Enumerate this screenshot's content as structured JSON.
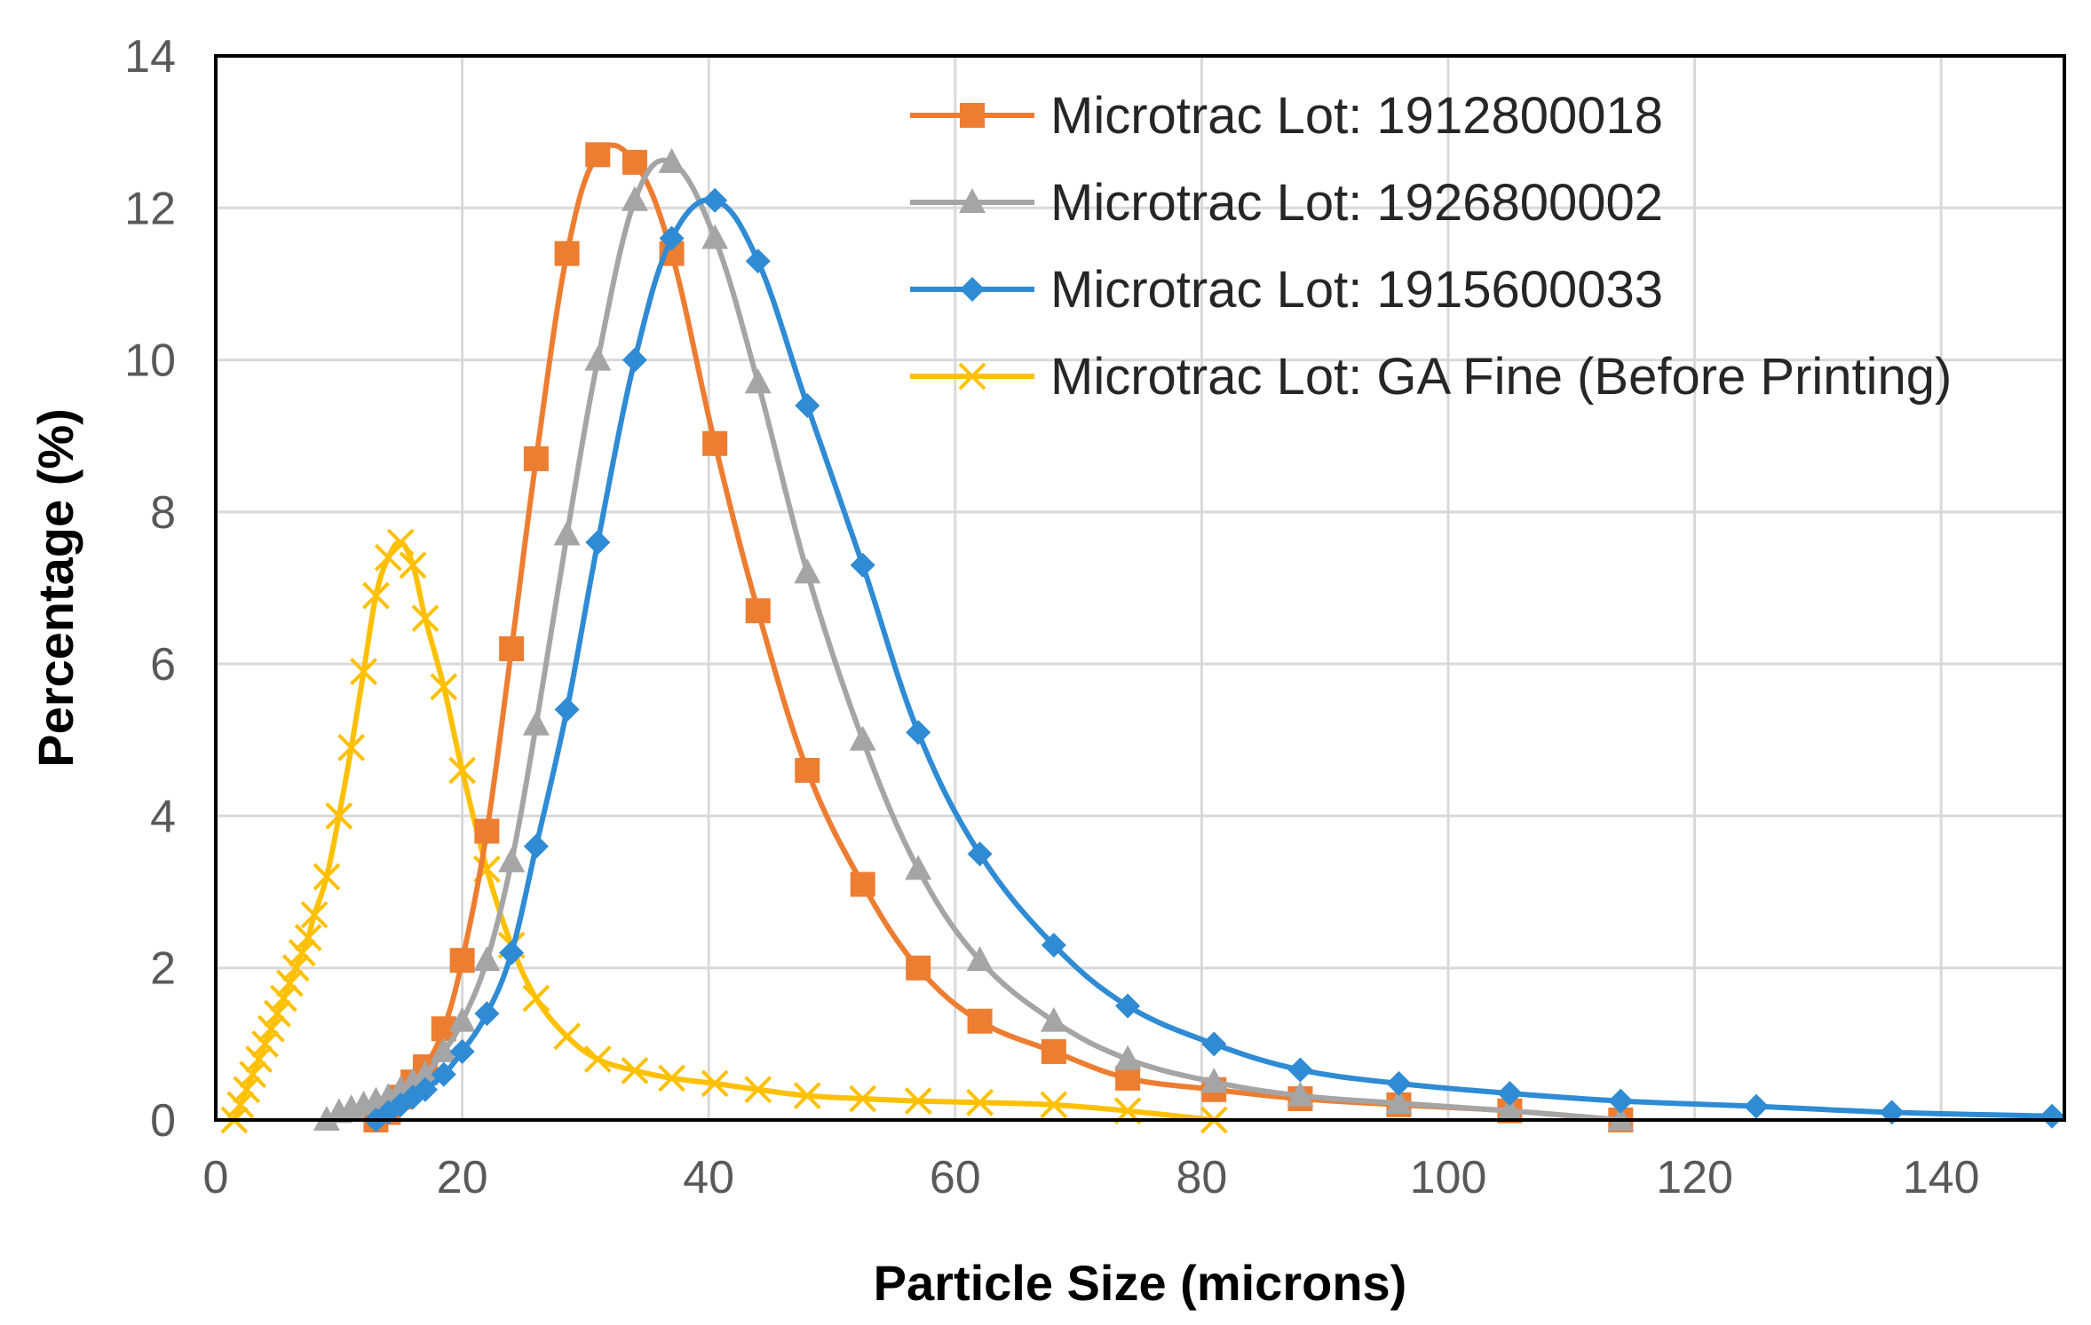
{
  "chart_data": {
    "type": "line",
    "title": "",
    "xlabel": "Particle Size (microns)",
    "ylabel": "Percentage (%)",
    "xlim": [
      0,
      150
    ],
    "ylim": [
      0,
      14
    ],
    "xticks": [
      0,
      20,
      40,
      60,
      80,
      100,
      120,
      140
    ],
    "yticks": [
      0,
      2,
      4,
      6,
      8,
      10,
      12,
      14
    ],
    "grid": true,
    "legend_position": "top-right",
    "series": [
      {
        "name": "Microtrac Lot: 1912800018",
        "color": "#ed7d31",
        "marker": "square",
        "x": [
          13,
          14,
          15,
          16,
          17,
          18.5,
          20,
          22,
          24,
          26,
          28.5,
          31,
          34,
          37,
          40.5,
          44,
          48,
          52.5,
          57,
          62,
          68,
          74,
          81,
          88,
          96,
          105,
          114
        ],
        "y": [
          0.0,
          0.1,
          0.3,
          0.5,
          0.7,
          1.2,
          2.1,
          3.8,
          6.2,
          8.7,
          11.4,
          12.7,
          12.6,
          11.4,
          8.9,
          6.7,
          4.6,
          3.1,
          2.0,
          1.3,
          0.9,
          0.55,
          0.4,
          0.28,
          0.2,
          0.12,
          0.0
        ]
      },
      {
        "name": "Microtrac Lot: 1926800002",
        "color": "#a5a5a5",
        "marker": "triangle",
        "x": [
          9,
          10,
          11,
          12,
          13,
          14,
          15,
          16,
          17,
          18.5,
          20,
          22,
          24,
          26,
          28.5,
          31,
          34,
          37,
          40.5,
          44,
          48,
          52.5,
          57,
          62,
          68,
          74,
          81,
          88,
          96,
          105,
          114
        ],
        "y": [
          0.0,
          0.1,
          0.15,
          0.2,
          0.25,
          0.3,
          0.4,
          0.5,
          0.6,
          0.9,
          1.3,
          2.1,
          3.4,
          5.2,
          7.7,
          10.0,
          12.1,
          12.6,
          11.6,
          9.7,
          7.2,
          5.0,
          3.3,
          2.1,
          1.3,
          0.8,
          0.5,
          0.32,
          0.22,
          0.12,
          0.0
        ]
      },
      {
        "name": "Microtrac Lot: 1915600033",
        "color": "#2e8bd4",
        "marker": "diamond",
        "x": [
          13,
          14,
          15,
          16,
          17,
          18.5,
          20,
          22,
          24,
          26,
          28.5,
          31,
          34,
          37,
          40.5,
          44,
          48,
          52.5,
          57,
          62,
          68,
          74,
          81,
          88,
          96,
          105,
          114,
          125,
          136,
          149
        ],
        "y": [
          0.0,
          0.1,
          0.2,
          0.3,
          0.4,
          0.6,
          0.9,
          1.4,
          2.2,
          3.6,
          5.4,
          7.6,
          10.0,
          11.6,
          12.1,
          11.3,
          9.4,
          7.3,
          5.1,
          3.5,
          2.3,
          1.5,
          1.0,
          0.66,
          0.48,
          0.35,
          0.25,
          0.18,
          0.1,
          0.05
        ]
      },
      {
        "name": "Microtrac Lot: GA Fine  (Before Printing)",
        "color": "#ffc000",
        "marker": "x",
        "x": [
          1.5,
          2,
          2.5,
          3,
          3.5,
          4,
          4.5,
          5,
          5.5,
          6,
          6.5,
          7,
          7.5,
          8,
          9,
          10,
          11,
          12,
          13,
          14,
          15,
          16,
          17,
          18.5,
          20,
          22,
          24,
          26,
          28.5,
          31,
          34,
          37,
          40.5,
          44,
          48,
          52.5,
          57,
          62,
          68,
          74,
          81
        ],
        "y": [
          0.0,
          0.2,
          0.4,
          0.6,
          0.8,
          1.0,
          1.2,
          1.4,
          1.6,
          1.8,
          2.0,
          2.2,
          2.4,
          2.7,
          3.2,
          4.0,
          4.9,
          5.9,
          6.9,
          7.4,
          7.6,
          7.3,
          6.6,
          5.7,
          4.6,
          3.3,
          2.3,
          1.6,
          1.1,
          0.8,
          0.65,
          0.55,
          0.48,
          0.4,
          0.32,
          0.28,
          0.25,
          0.23,
          0.2,
          0.12,
          0.0
        ]
      }
    ]
  }
}
